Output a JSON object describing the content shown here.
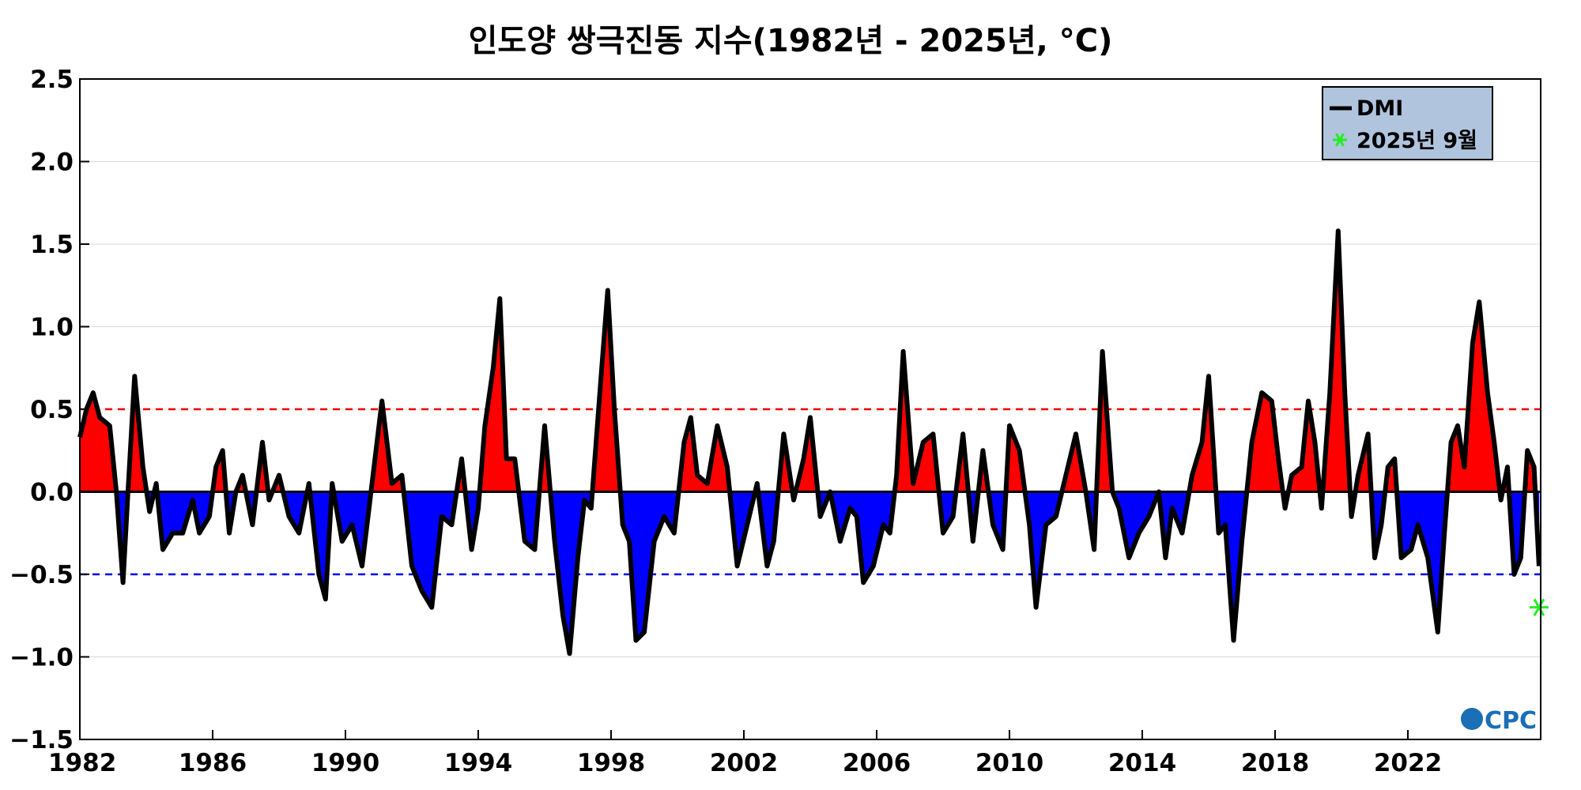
{
  "chart_data": {
    "type": "area",
    "title": "인도양 쌍극진동 지수(1982년 - 2025년, °C)",
    "xlabel": "",
    "ylabel": "",
    "xlim": [
      1982.0,
      2026.0
    ],
    "ylim": [
      -1.5,
      2.5
    ],
    "x_ticks": [
      1982,
      1986,
      1990,
      1994,
      1998,
      2002,
      2006,
      2010,
      2014,
      2018,
      2022
    ],
    "x_tick_labels": [
      "1982",
      "1986",
      "1990",
      "1994",
      "1998",
      "2002",
      "2006",
      "2010",
      "2014",
      "2018",
      "2022"
    ],
    "y_ticks": [
      -1.5,
      -1.0,
      -0.5,
      0.0,
      0.5,
      1.0,
      1.5,
      2.0,
      2.5
    ],
    "y_tick_labels": [
      "−1.5",
      "−1.0",
      "−0.5",
      "0.0",
      "0.5",
      "1.0",
      "1.5",
      "2.0",
      "2.5"
    ],
    "grid": "horizontal",
    "thresholds": [
      {
        "value": 0.5,
        "color": "#ee0000",
        "style": "dashed"
      },
      {
        "value": -0.5,
        "color": "#0000ee",
        "style": "dashed"
      }
    ],
    "fill_positive_color": "#ff0000",
    "fill_negative_color": "#0000ff",
    "line_color": "#000000",
    "legend_position": "top-right",
    "legend": [
      {
        "label": "DMI",
        "marker": "line",
        "color": "#000000"
      },
      {
        "label": "2025년 9월",
        "marker": "asterisk",
        "color": "#22ee22"
      }
    ],
    "series": [
      {
        "name": "DMI",
        "points": [
          [
            1982.0,
            0.33
          ],
          [
            1982.2,
            0.5
          ],
          [
            1982.4,
            0.6
          ],
          [
            1982.6,
            0.45
          ],
          [
            1982.9,
            0.4
          ],
          [
            1983.1,
            0.0
          ],
          [
            1983.3,
            -0.55
          ],
          [
            1983.45,
            0.0
          ],
          [
            1983.65,
            0.7
          ],
          [
            1983.9,
            0.15
          ],
          [
            1984.1,
            -0.12
          ],
          [
            1984.3,
            0.05
          ],
          [
            1984.5,
            -0.35
          ],
          [
            1984.8,
            -0.25
          ],
          [
            1985.1,
            -0.25
          ],
          [
            1985.4,
            -0.05
          ],
          [
            1985.6,
            -0.25
          ],
          [
            1985.9,
            -0.15
          ],
          [
            1986.1,
            0.15
          ],
          [
            1986.3,
            0.25
          ],
          [
            1986.5,
            -0.25
          ],
          [
            1986.7,
            0.0
          ],
          [
            1986.9,
            0.1
          ],
          [
            1987.2,
            -0.2
          ],
          [
            1987.5,
            0.3
          ],
          [
            1987.7,
            -0.05
          ],
          [
            1988.0,
            0.1
          ],
          [
            1988.3,
            -0.15
          ],
          [
            1988.6,
            -0.25
          ],
          [
            1988.9,
            0.05
          ],
          [
            1989.2,
            -0.5
          ],
          [
            1989.4,
            -0.65
          ],
          [
            1989.6,
            0.05
          ],
          [
            1989.9,
            -0.3
          ],
          [
            1990.2,
            -0.2
          ],
          [
            1990.5,
            -0.45
          ],
          [
            1990.8,
            0.05
          ],
          [
            1991.1,
            0.55
          ],
          [
            1991.4,
            0.05
          ],
          [
            1991.7,
            0.1
          ],
          [
            1992.0,
            -0.45
          ],
          [
            1992.3,
            -0.6
          ],
          [
            1992.6,
            -0.7
          ],
          [
            1992.9,
            -0.15
          ],
          [
            1993.2,
            -0.2
          ],
          [
            1993.5,
            0.2
          ],
          [
            1993.8,
            -0.35
          ],
          [
            1994.0,
            -0.1
          ],
          [
            1994.2,
            0.4
          ],
          [
            1994.45,
            0.75
          ],
          [
            1994.65,
            1.17
          ],
          [
            1994.85,
            0.2
          ],
          [
            1995.1,
            0.2
          ],
          [
            1995.4,
            -0.3
          ],
          [
            1995.7,
            -0.35
          ],
          [
            1996.0,
            0.4
          ],
          [
            1996.3,
            -0.3
          ],
          [
            1996.55,
            -0.75
          ],
          [
            1996.75,
            -0.98
          ],
          [
            1997.0,
            -0.4
          ],
          [
            1997.2,
            -0.05
          ],
          [
            1997.4,
            -0.1
          ],
          [
            1997.7,
            0.7
          ],
          [
            1997.9,
            1.22
          ],
          [
            1998.1,
            0.5
          ],
          [
            1998.35,
            -0.2
          ],
          [
            1998.55,
            -0.3
          ],
          [
            1998.75,
            -0.9
          ],
          [
            1999.0,
            -0.85
          ],
          [
            1999.3,
            -0.3
          ],
          [
            1999.6,
            -0.15
          ],
          [
            1999.9,
            -0.25
          ],
          [
            2000.2,
            0.3
          ],
          [
            2000.4,
            0.45
          ],
          [
            2000.6,
            0.1
          ],
          [
            2000.9,
            0.05
          ],
          [
            2001.2,
            0.4
          ],
          [
            2001.5,
            0.15
          ],
          [
            2001.8,
            -0.45
          ],
          [
            2002.1,
            -0.2
          ],
          [
            2002.4,
            0.05
          ],
          [
            2002.7,
            -0.45
          ],
          [
            2002.9,
            -0.3
          ],
          [
            2003.2,
            0.35
          ],
          [
            2003.5,
            -0.05
          ],
          [
            2003.8,
            0.2
          ],
          [
            2004.0,
            0.45
          ],
          [
            2004.3,
            -0.15
          ],
          [
            2004.6,
            0.0
          ],
          [
            2004.9,
            -0.3
          ],
          [
            2005.2,
            -0.1
          ],
          [
            2005.4,
            -0.15
          ],
          [
            2005.6,
            -0.55
          ],
          [
            2005.9,
            -0.45
          ],
          [
            2006.2,
            -0.2
          ],
          [
            2006.4,
            -0.25
          ],
          [
            2006.6,
            0.1
          ],
          [
            2006.8,
            0.85
          ],
          [
            2007.1,
            0.05
          ],
          [
            2007.4,
            0.3
          ],
          [
            2007.7,
            0.35
          ],
          [
            2008.0,
            -0.25
          ],
          [
            2008.3,
            -0.15
          ],
          [
            2008.6,
            0.35
          ],
          [
            2008.9,
            -0.3
          ],
          [
            2009.2,
            0.25
          ],
          [
            2009.5,
            -0.2
          ],
          [
            2009.8,
            -0.35
          ],
          [
            2010.0,
            0.4
          ],
          [
            2010.3,
            0.25
          ],
          [
            2010.6,
            -0.2
          ],
          [
            2010.8,
            -0.7
          ],
          [
            2011.1,
            -0.2
          ],
          [
            2011.4,
            -0.15
          ],
          [
            2011.7,
            0.1
          ],
          [
            2012.0,
            0.35
          ],
          [
            2012.3,
            0.0
          ],
          [
            2012.55,
            -0.35
          ],
          [
            2012.8,
            0.85
          ],
          [
            2013.1,
            0.0
          ],
          [
            2013.3,
            -0.1
          ],
          [
            2013.6,
            -0.4
          ],
          [
            2013.9,
            -0.25
          ],
          [
            2014.2,
            -0.15
          ],
          [
            2014.5,
            0.0
          ],
          [
            2014.7,
            -0.4
          ],
          [
            2014.9,
            -0.1
          ],
          [
            2015.2,
            -0.25
          ],
          [
            2015.5,
            0.1
          ],
          [
            2015.8,
            0.3
          ],
          [
            2016.0,
            0.7
          ],
          [
            2016.3,
            -0.25
          ],
          [
            2016.5,
            -0.2
          ],
          [
            2016.75,
            -0.9
          ],
          [
            2017.0,
            -0.3
          ],
          [
            2017.3,
            0.3
          ],
          [
            2017.6,
            0.6
          ],
          [
            2017.9,
            0.55
          ],
          [
            2018.1,
            0.2
          ],
          [
            2018.3,
            -0.1
          ],
          [
            2018.5,
            0.1
          ],
          [
            2018.8,
            0.15
          ],
          [
            2019.0,
            0.55
          ],
          [
            2019.2,
            0.3
          ],
          [
            2019.4,
            -0.1
          ],
          [
            2019.65,
            0.6
          ],
          [
            2019.9,
            1.58
          ],
          [
            2020.1,
            0.6
          ],
          [
            2020.3,
            -0.15
          ],
          [
            2020.5,
            0.1
          ],
          [
            2020.8,
            0.35
          ],
          [
            2021.0,
            -0.4
          ],
          [
            2021.2,
            -0.2
          ],
          [
            2021.4,
            0.15
          ],
          [
            2021.6,
            0.2
          ],
          [
            2021.8,
            -0.4
          ],
          [
            2022.1,
            -0.35
          ],
          [
            2022.3,
            -0.2
          ],
          [
            2022.6,
            -0.4
          ],
          [
            2022.9,
            -0.85
          ],
          [
            2023.1,
            -0.25
          ],
          [
            2023.3,
            0.3
          ],
          [
            2023.5,
            0.4
          ],
          [
            2023.7,
            0.15
          ],
          [
            2023.95,
            0.9
          ],
          [
            2024.15,
            1.15
          ],
          [
            2024.4,
            0.6
          ],
          [
            2024.6,
            0.3
          ],
          [
            2024.8,
            -0.05
          ],
          [
            2025.0,
            0.15
          ],
          [
            2025.2,
            -0.5
          ],
          [
            2025.4,
            -0.4
          ],
          [
            2025.6,
            0.25
          ],
          [
            2025.8,
            0.15
          ],
          [
            2025.95,
            -0.45
          ]
        ]
      },
      {
        "name": "2025년 9월",
        "points": [
          [
            2025.95,
            -0.7
          ]
        ]
      }
    ],
    "annotations": [
      "CPC"
    ]
  }
}
